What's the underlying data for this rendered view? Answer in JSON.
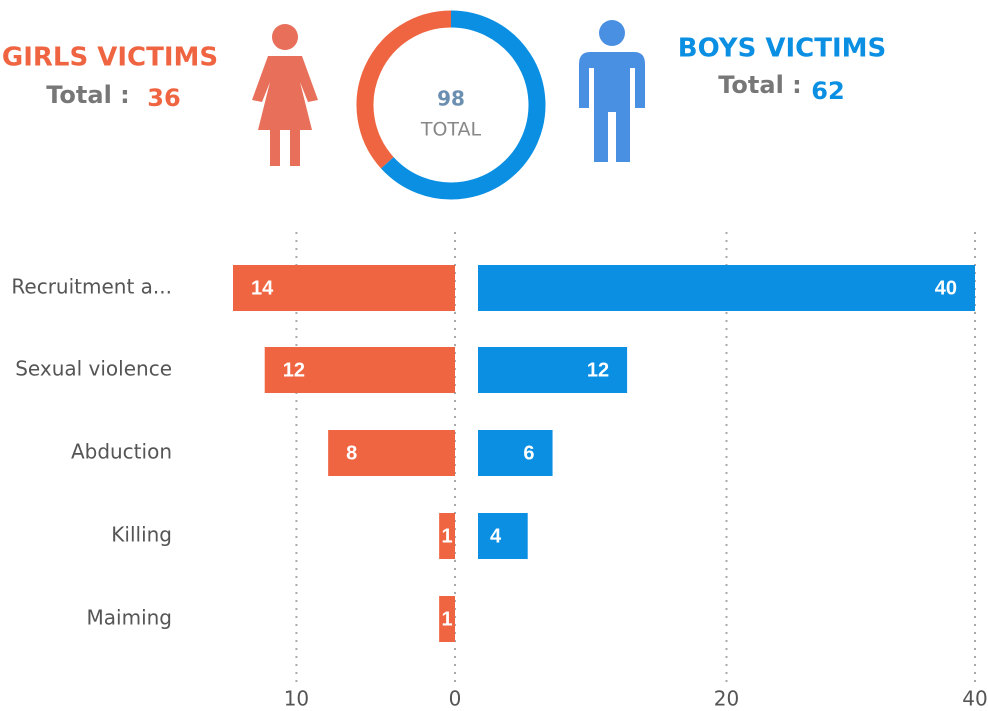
{
  "chart_data": [
    {
      "type": "donut",
      "girls_title": "GIRLS VICTIMS",
      "boys_title": "BOYS VICTIMS",
      "total_label": "Total :",
      "values": [
        36,
        62
      ],
      "colors": [
        "#f06541",
        "#0a8fe3"
      ],
      "center_value": 98,
      "center_label": "TOTAL"
    },
    {
      "type": "diverging-bar",
      "categories": [
        "Recruitment a...",
        "Sexual violence",
        "Abduction",
        "Killing",
        "Maiming"
      ],
      "series": [
        {
          "color": "#f06541",
          "values": [
            14,
            12,
            8,
            1,
            1
          ],
          "xlim": [
            0,
            14
          ],
          "xticks": [
            0,
            10
          ]
        },
        {
          "color": "#0a8fe3",
          "values": [
            40,
            12,
            6,
            4,
            null
          ],
          "xlim": [
            0,
            40
          ],
          "xticks": [
            20,
            40
          ]
        }
      ],
      "grid": true
    }
  ]
}
